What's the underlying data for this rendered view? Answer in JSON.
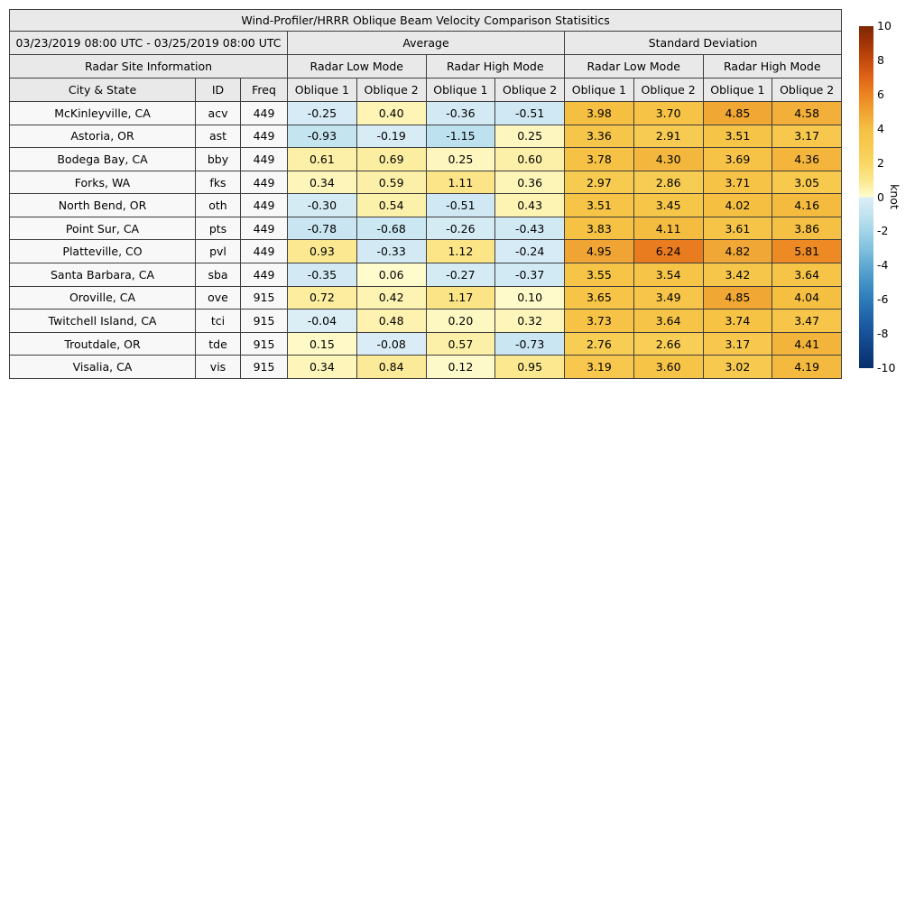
{
  "table": {
    "title": "Wind-Profiler/HRRR Oblique Beam Velocity Comparison Statisitics",
    "date_range": "03/23/2019 08:00 UTC - 03/25/2019 08:00 UTC",
    "group_headers": [
      "Average",
      "Standard Deviation"
    ],
    "site_info_header": "Radar Site Information",
    "mode_headers": [
      "Radar Low Mode",
      "Radar High Mode",
      "Radar Low Mode",
      "Radar High Mode"
    ],
    "column_headers": [
      "City & State",
      "ID",
      "Freq",
      "Oblique 1",
      "Oblique 2",
      "Oblique 1",
      "Oblique 2",
      "Oblique 1",
      "Oblique 2",
      "Oblique 1",
      "Oblique 2"
    ]
  },
  "chart_data": {
    "type": "heatmap",
    "title": "Wind-Profiler/HRRR Oblique Beam Velocity Comparison Statisitics",
    "value_columns": [
      "Average Radar Low Mode Oblique 1",
      "Average Radar Low Mode Oblique 2",
      "Average Radar High Mode Oblique 1",
      "Average Radar High Mode Oblique 2",
      "Standard Deviation Radar Low Mode Oblique 1",
      "Standard Deviation Radar Low Mode Oblique 2",
      "Standard Deviation Radar High Mode Oblique 1",
      "Standard Deviation Radar High Mode Oblique 2"
    ],
    "rows": [
      {
        "city": "McKinleyville, CA",
        "id": "acv",
        "freq": "449",
        "values": [
          -0.25,
          0.4,
          -0.36,
          -0.51,
          3.98,
          3.7,
          4.85,
          4.58
        ]
      },
      {
        "city": "Astoria, OR",
        "id": "ast",
        "freq": "449",
        "values": [
          -0.93,
          -0.19,
          -1.15,
          0.25,
          3.36,
          2.91,
          3.51,
          3.17
        ]
      },
      {
        "city": "Bodega Bay, CA",
        "id": "bby",
        "freq": "449",
        "values": [
          0.61,
          0.69,
          0.25,
          0.6,
          3.78,
          4.3,
          3.69,
          4.36
        ]
      },
      {
        "city": "Forks, WA",
        "id": "fks",
        "freq": "449",
        "values": [
          0.34,
          0.59,
          1.11,
          0.36,
          2.97,
          2.86,
          3.71,
          3.05
        ]
      },
      {
        "city": "North Bend, OR",
        "id": "oth",
        "freq": "449",
        "values": [
          -0.3,
          0.54,
          -0.51,
          0.43,
          3.51,
          3.45,
          4.02,
          4.16
        ]
      },
      {
        "city": "Point Sur, CA",
        "id": "pts",
        "freq": "449",
        "values": [
          -0.78,
          -0.68,
          -0.26,
          -0.43,
          3.83,
          4.11,
          3.61,
          3.86
        ]
      },
      {
        "city": "Platteville, CO",
        "id": "pvl",
        "freq": "449",
        "values": [
          0.93,
          -0.33,
          1.12,
          -0.24,
          4.95,
          6.24,
          4.82,
          5.81
        ]
      },
      {
        "city": "Santa Barbara, CA",
        "id": "sba",
        "freq": "449",
        "values": [
          -0.35,
          0.06,
          -0.27,
          -0.37,
          3.55,
          3.54,
          3.42,
          3.64
        ]
      },
      {
        "city": "Oroville, CA",
        "id": "ove",
        "freq": "915",
        "values": [
          0.72,
          0.42,
          1.17,
          0.1,
          3.65,
          3.49,
          4.85,
          4.04
        ]
      },
      {
        "city": "Twitchell Island, CA",
        "id": "tci",
        "freq": "915",
        "values": [
          -0.04,
          0.48,
          0.2,
          0.32,
          3.73,
          3.64,
          3.74,
          3.47
        ]
      },
      {
        "city": "Troutdale, OR",
        "id": "tde",
        "freq": "915",
        "values": [
          0.15,
          -0.08,
          0.57,
          -0.73,
          2.76,
          2.66,
          3.17,
          4.41
        ]
      },
      {
        "city": "Visalia, CA",
        "id": "vis",
        "freq": "915",
        "values": [
          0.34,
          0.84,
          0.12,
          0.95,
          3.19,
          3.6,
          3.02,
          4.19
        ]
      }
    ],
    "colorbar": {
      "label": "knot",
      "min": -10,
      "max": 10,
      "ticks": [
        10,
        8,
        6,
        4,
        2,
        0,
        -2,
        -4,
        -6,
        -8,
        -10
      ],
      "positive_stops": [
        [
          0,
          "#fefcd0"
        ],
        [
          1,
          "#fbe78c"
        ],
        [
          2,
          "#f9d765"
        ],
        [
          3,
          "#f7ca4f"
        ],
        [
          4,
          "#f5c042"
        ],
        [
          5,
          "#f0a232"
        ],
        [
          6,
          "#ec8420"
        ],
        [
          7,
          "#de6418"
        ],
        [
          8,
          "#c44a0e"
        ],
        [
          9,
          "#a23405"
        ],
        [
          10,
          "#7f2704"
        ]
      ],
      "negative_stops": [
        [
          -10,
          "#08306b"
        ],
        [
          -9,
          "#0e3f82"
        ],
        [
          -8,
          "#165199"
        ],
        [
          -7,
          "#2164aa"
        ],
        [
          -6,
          "#2d7bba"
        ],
        [
          -5,
          "#4392c6"
        ],
        [
          -4,
          "#5fa9d1"
        ],
        [
          -3,
          "#81c2de"
        ],
        [
          -2,
          "#a3d4e9"
        ],
        [
          -1,
          "#c2e3f0"
        ],
        [
          0,
          "#dceef6"
        ]
      ]
    },
    "legend_position": "right",
    "grid": true
  }
}
